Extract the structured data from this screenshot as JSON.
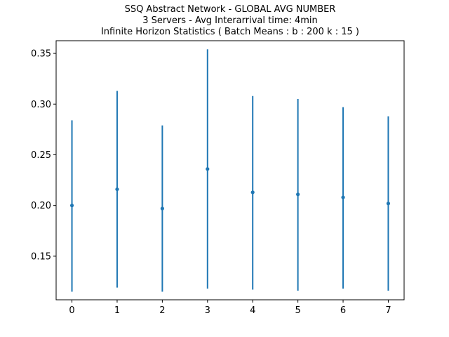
{
  "chart_data": {
    "type": "scatter",
    "title_lines": [
      "SSQ Abstract Network - GLOBAL AVG NUMBER",
      "3 Servers -  Avg Interarrival time: 4min",
      " Infinite Horizon Statistics ( Batch Means : b : 200  k : 15 )"
    ],
    "xlabel": "",
    "ylabel": "",
    "x": [
      0,
      1,
      2,
      3,
      4,
      5,
      6,
      7
    ],
    "series": [
      {
        "values": [
          0.2,
          0.216,
          0.197,
          0.236,
          0.213,
          0.211,
          0.208,
          0.202
        ],
        "error_low": [
          0.115,
          0.119,
          0.115,
          0.118,
          0.117,
          0.116,
          0.118,
          0.116
        ],
        "error_high": [
          0.284,
          0.313,
          0.279,
          0.354,
          0.308,
          0.305,
          0.297,
          0.288
        ]
      }
    ],
    "xlim": [
      -0.35,
      7.35
    ],
    "ylim": [
      0.107,
      0.3625
    ],
    "x_ticks": [
      "0",
      "1",
      "2",
      "3",
      "4",
      "5",
      "6",
      "7"
    ],
    "y_ticks": [
      "0.15",
      "0.20",
      "0.25",
      "0.30",
      "0.35"
    ],
    "grid": false,
    "legend": "none",
    "color": "#1f77b4"
  }
}
